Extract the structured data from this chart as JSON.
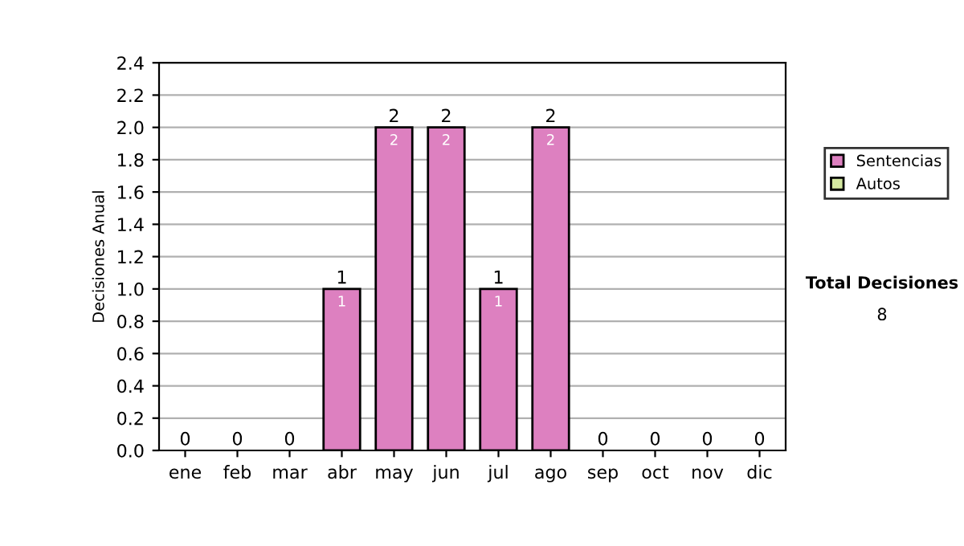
{
  "chart_data": {
    "type": "bar",
    "ylabel": "Decisiones Anual",
    "categories": [
      "ene",
      "feb",
      "mar",
      "abr",
      "may",
      "jun",
      "jul",
      "ago",
      "sep",
      "oct",
      "nov",
      "dic"
    ],
    "series": [
      {
        "name": "Sentencias",
        "color": "#dd80c0",
        "values": [
          0,
          0,
          0,
          1,
          2,
          2,
          1,
          2,
          0,
          0,
          0,
          0
        ],
        "value_labels": [
          null,
          null,
          null,
          "1",
          "2",
          "2",
          "1",
          "2",
          null,
          null,
          null,
          null
        ]
      },
      {
        "name": "Autos",
        "color": "#d4e8a0",
        "values": [
          0,
          0,
          0,
          0,
          0,
          0,
          0,
          0,
          0,
          0,
          0,
          0
        ]
      }
    ],
    "stacked": true,
    "totals": [
      "0",
      "0",
      "0",
      "1",
      "2",
      "2",
      "1",
      "2",
      "0",
      "0",
      "0",
      "0"
    ],
    "ylim": [
      0,
      2.4
    ],
    "yticks": [
      {
        "value": 0,
        "label": "0.0"
      },
      {
        "value": 0.2,
        "label": "0.2"
      },
      {
        "value": 0.4,
        "label": "0.4"
      },
      {
        "value": 0.6,
        "label": "0.6"
      },
      {
        "value": 0.8,
        "label": "0.8"
      },
      {
        "value": 1,
        "label": "1.0"
      },
      {
        "value": 1.2,
        "label": "1.2"
      },
      {
        "value": 1.4,
        "label": "1.4"
      },
      {
        "value": 1.6,
        "label": "1.6"
      },
      {
        "value": 1.8,
        "label": "1.8"
      },
      {
        "value": 2,
        "label": "2.0"
      },
      {
        "value": 2.2,
        "label": "2.2"
      },
      {
        "value": 2.4,
        "label": "2.4"
      }
    ],
    "grid": "y",
    "legend": "right",
    "annotations": [
      "Total Decisiones",
      "8"
    ]
  }
}
